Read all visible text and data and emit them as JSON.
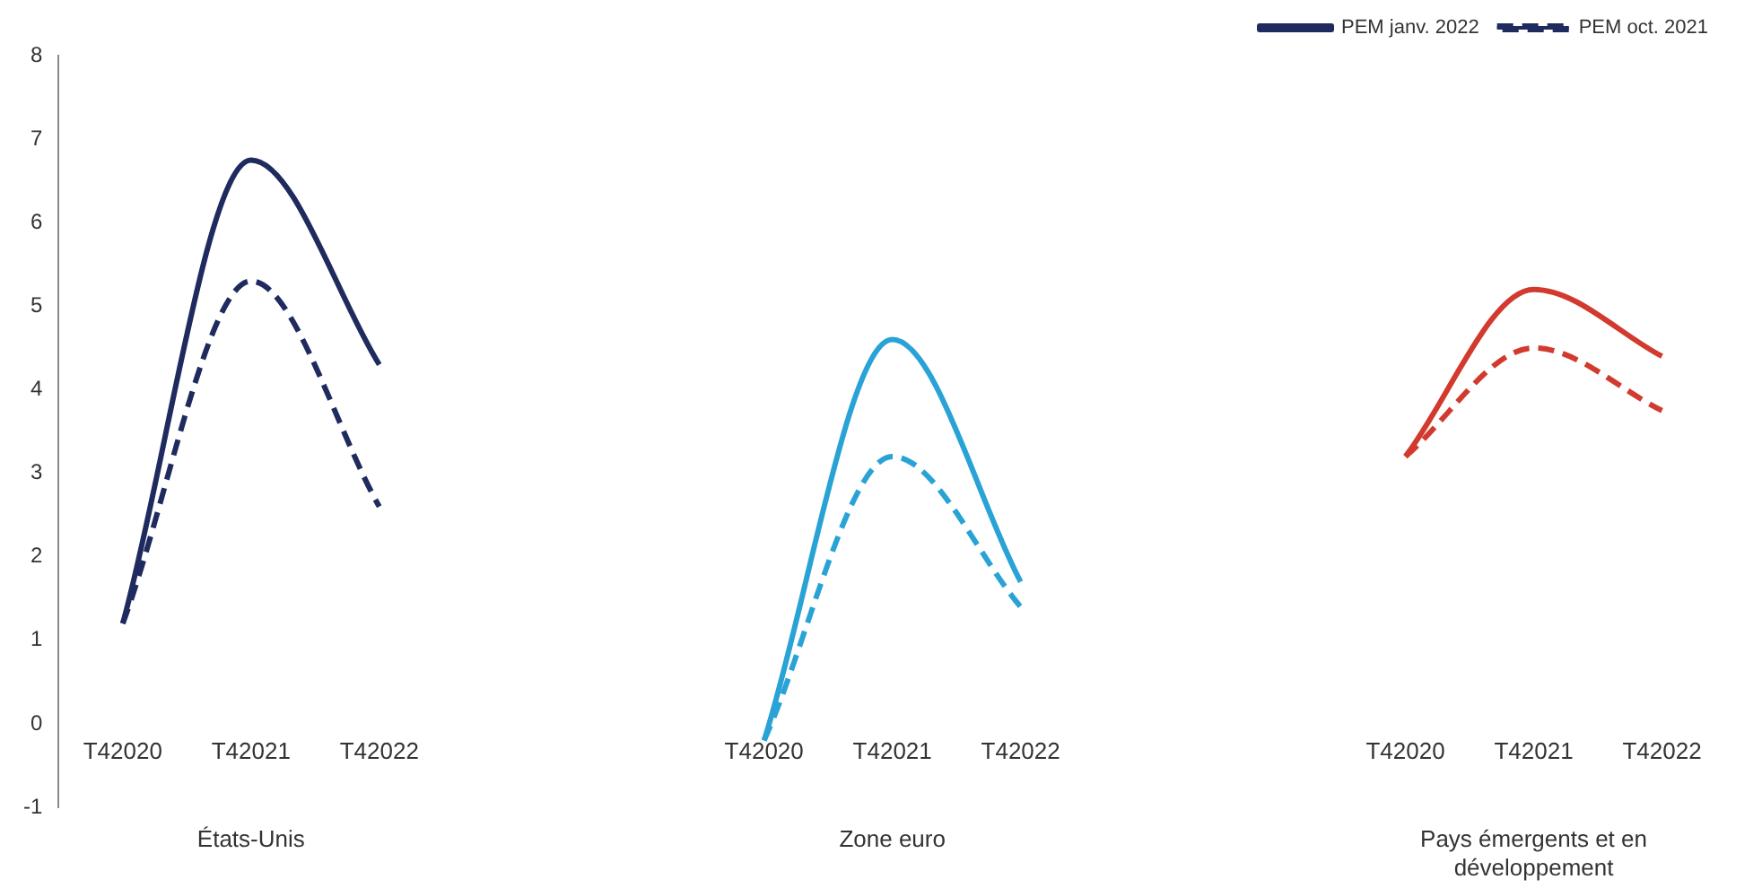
{
  "chart_data": {
    "type": "line",
    "categories": [
      "T42020",
      "T42021",
      "T42022",
      null,
      null,
      "T42020",
      "T42021",
      "T42022",
      null,
      null,
      "T42020",
      "T42021",
      "T42022"
    ],
    "series": [
      {
        "name": "PEM janv. 2022",
        "color": "#1f2b5e",
        "line_style": "solid",
        "values": [
          1.2,
          6.75,
          4.3,
          null,
          null,
          null,
          null,
          null,
          null,
          null,
          null,
          null,
          null
        ]
      },
      {
        "name": "PEM oct. 2021",
        "color": "#1f2b5e",
        "line_style": "dashed",
        "values": [
          1.2,
          5.3,
          2.6,
          null,
          null,
          null,
          null,
          null,
          null,
          null,
          null,
          null,
          null
        ]
      },
      {
        "color": "#29a3d6",
        "line_style": "solid",
        "values": [
          null,
          null,
          null,
          null,
          null,
          -0.2,
          4.6,
          1.7,
          null,
          null,
          null,
          null,
          null
        ]
      },
      {
        "color": "#29a3d6",
        "line_style": "dashed",
        "values": [
          null,
          null,
          null,
          null,
          null,
          -0.2,
          3.2,
          1.4,
          null,
          null,
          null,
          null,
          null
        ]
      },
      {
        "color": "#d23a2f",
        "line_style": "solid",
        "values": [
          null,
          null,
          null,
          null,
          null,
          null,
          null,
          null,
          null,
          null,
          3.2,
          5.2,
          4.4
        ]
      },
      {
        "color": "#d23a2f",
        "line_style": "dashed",
        "values": [
          null,
          null,
          null,
          null,
          null,
          null,
          null,
          null,
          null,
          null,
          3.2,
          4.5,
          3.75
        ]
      }
    ],
    "ylim": [
      -1,
      8
    ],
    "yticks": [
      -1,
      0,
      1,
      2,
      3,
      4,
      5,
      6,
      7,
      8
    ],
    "grid": false,
    "legend": "top",
    "marker": "none",
    "annotations": [
      "États-Unis",
      "Zone euro",
      "Pays émergents et en développement"
    ]
  }
}
